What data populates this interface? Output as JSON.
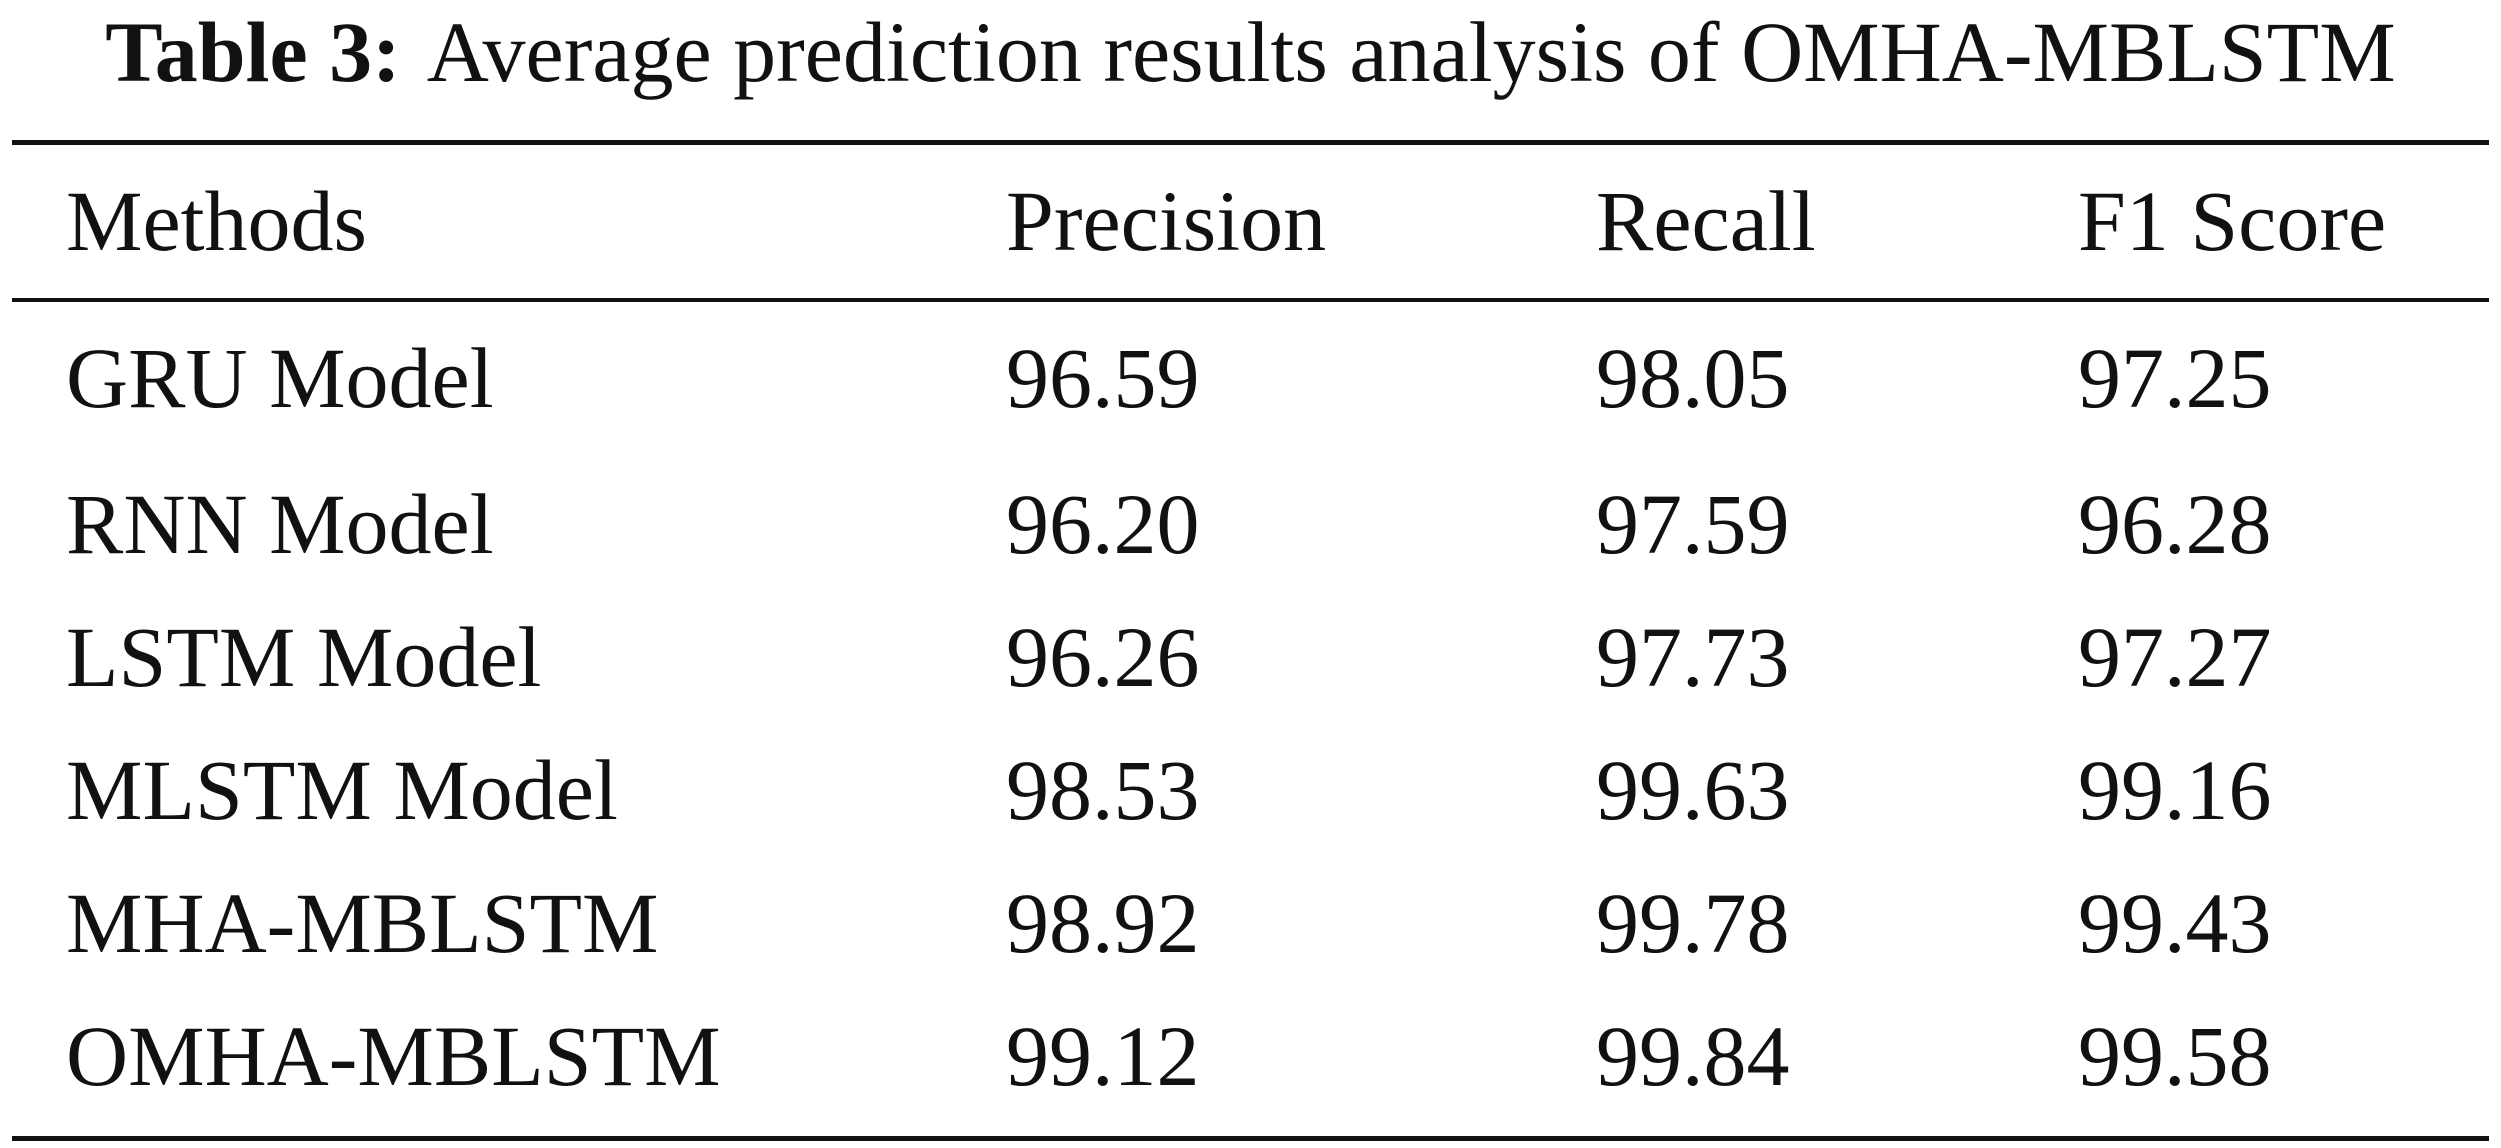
{
  "caption": {
    "label": "Table 3:",
    "text": "Average prediction results analysis of OMHA-MBLSTM"
  },
  "table": {
    "headers": [
      "Methods",
      "Precision",
      "Recall",
      "F1 Score"
    ],
    "rows": [
      [
        "GRU Model",
        "96.59",
        "98.05",
        "97.25"
      ],
      [
        "RNN Model",
        "96.20",
        "97.59",
        "96.28"
      ],
      [
        "LSTM Model",
        "96.26",
        "97.73",
        "97.27"
      ],
      [
        "MLSTM Model",
        "98.53",
        "99.63",
        "99.16"
      ],
      [
        "MHA-MBLSTM",
        "98.92",
        "99.78",
        "99.43"
      ],
      [
        "OMHA-MBLSTM",
        "99.12",
        "99.84",
        "99.58"
      ]
    ]
  }
}
